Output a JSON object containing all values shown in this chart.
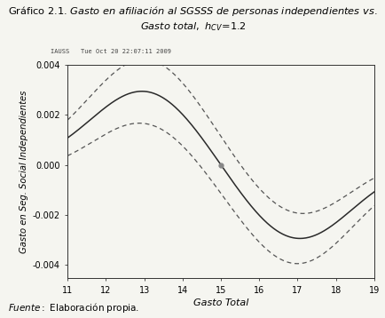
{
  "xlabel": "Gasto Total",
  "ylabel": "Gasto en Seg. Social Independientes",
  "xlim": [
    11,
    19
  ],
  "ylim": [
    -0.00455,
    0.00055
  ],
  "xticks": [
    11,
    12,
    13,
    14,
    15,
    16,
    17,
    18,
    19
  ],
  "yticks": [
    -0.004,
    -0.002,
    0.0,
    0.002,
    0.004
  ],
  "ytick_labels": [
    "-0.004",
    "-0.002",
    "0.000",
    "0.002",
    "0.004"
  ],
  "source_italic": "Fuente:",
  "source_rest": " Elaboración propia.",
  "stamp": "IAUSS   Tue Oct 20 22:07:11 2009",
  "line_color": "#2a2a2a",
  "dash_color": "#555555",
  "background": "#f5f5f0",
  "plot_bg": "#f5f5f0"
}
